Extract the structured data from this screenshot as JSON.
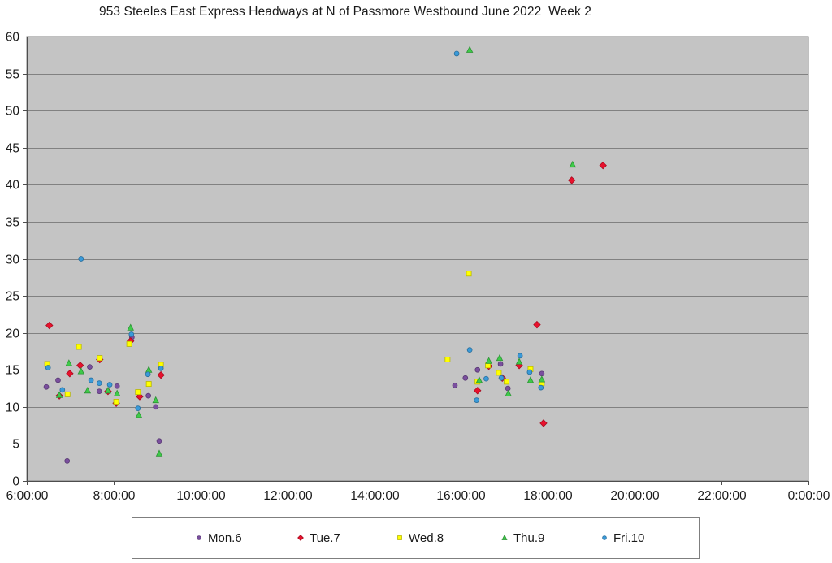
{
  "chart_data": {
    "type": "scatter",
    "title": "953 Steeles East Express Headways at N of Passmore Westbound June 2022  Week 2",
    "xlabel": "",
    "ylabel": "",
    "xlim": [
      6,
      24
    ],
    "ylim": [
      0,
      60
    ],
    "y_tick_step": 5,
    "x_tick_labels": [
      "6:00:00",
      "8:00:00",
      "10:00:00",
      "12:00:00",
      "14:00:00",
      "16:00:00",
      "18:00:00",
      "20:00:00",
      "22:00:00",
      "0:00:00"
    ],
    "y_tick_labels": [
      "0",
      "5",
      "10",
      "15",
      "20",
      "25",
      "30",
      "35",
      "40",
      "45",
      "50",
      "55",
      "60"
    ],
    "grid": "horizontal",
    "legend_position": "bottom",
    "plot_bg_color": "#c4c4c4",
    "grid_color": "#818181",
    "axis_color": "#4d4d4d",
    "label_color": "#1a1a1a",
    "x_unit": "time of day (hours)",
    "y_unit": "headway (minutes)",
    "series": [
      {
        "name": "Mon.6",
        "marker": "circle",
        "color": "#7a4f9e",
        "points": [
          [
            6.45,
            12.7
          ],
          [
            6.72,
            13.6
          ],
          [
            6.93,
            2.7
          ],
          [
            7.45,
            15.4
          ],
          [
            7.67,
            12.1
          ],
          [
            8.08,
            12.8
          ],
          [
            8.42,
            19.4
          ],
          [
            8.8,
            11.5
          ],
          [
            8.97,
            10.0
          ],
          [
            9.05,
            5.4
          ],
          [
            15.86,
            12.9
          ],
          [
            16.1,
            13.9
          ],
          [
            16.38,
            15.0
          ],
          [
            16.91,
            15.8
          ],
          [
            17.08,
            12.5
          ],
          [
            17.86,
            14.5
          ]
        ]
      },
      {
        "name": "Tue.7",
        "marker": "diamond",
        "color": "#e8112d",
        "points": [
          [
            6.52,
            21.0
          ],
          [
            6.75,
            11.5
          ],
          [
            6.99,
            14.5
          ],
          [
            7.23,
            15.6
          ],
          [
            7.68,
            16.4
          ],
          [
            7.87,
            12.1
          ],
          [
            8.06,
            10.5
          ],
          [
            8.39,
            18.9
          ],
          [
            8.6,
            11.4
          ],
          [
            9.09,
            14.3
          ],
          [
            16.38,
            12.2
          ],
          [
            16.64,
            15.5
          ],
          [
            16.95,
            13.9
          ],
          [
            17.34,
            15.6
          ],
          [
            17.75,
            21.1
          ],
          [
            17.9,
            7.8
          ],
          [
            18.55,
            40.6
          ],
          [
            19.27,
            42.6
          ]
        ]
      },
      {
        "name": "Wed.8",
        "marker": "square",
        "color": "#ffff00",
        "points": [
          [
            6.47,
            15.8
          ],
          [
            6.94,
            11.7
          ],
          [
            7.2,
            18.1
          ],
          [
            7.68,
            16.6
          ],
          [
            8.06,
            10.7
          ],
          [
            8.36,
            18.5
          ],
          [
            8.56,
            12.0
          ],
          [
            8.81,
            13.1
          ],
          [
            9.09,
            15.7
          ],
          [
            15.69,
            16.4
          ],
          [
            16.18,
            28.0
          ],
          [
            16.38,
            13.4
          ],
          [
            16.62,
            15.6
          ],
          [
            16.87,
            14.6
          ],
          [
            17.05,
            13.4
          ],
          [
            17.6,
            15.1
          ],
          [
            17.86,
            13.2
          ]
        ]
      },
      {
        "name": "Thu.9",
        "marker": "triangle",
        "color": "#3ecb49",
        "points": [
          [
            6.75,
            11.6
          ],
          [
            6.97,
            15.9
          ],
          [
            7.25,
            14.8
          ],
          [
            7.4,
            12.2
          ],
          [
            7.87,
            12.2
          ],
          [
            8.08,
            11.8
          ],
          [
            8.39,
            20.7
          ],
          [
            8.58,
            8.9
          ],
          [
            8.81,
            15.0
          ],
          [
            8.97,
            10.9
          ],
          [
            9.05,
            3.7
          ],
          [
            16.2,
            58.2
          ],
          [
            16.42,
            13.6
          ],
          [
            16.64,
            16.2
          ],
          [
            16.89,
            16.6
          ],
          [
            17.09,
            11.8
          ],
          [
            17.34,
            16.1
          ],
          [
            17.6,
            13.6
          ],
          [
            17.86,
            13.7
          ],
          [
            18.57,
            42.7
          ]
        ]
      },
      {
        "name": "Fri.10",
        "marker": "circle",
        "color": "#3a9ad9",
        "points": [
          [
            6.49,
            15.3
          ],
          [
            6.82,
            12.3
          ],
          [
            7.25,
            30.0
          ],
          [
            7.48,
            13.6
          ],
          [
            7.67,
            13.2
          ],
          [
            7.91,
            13.0
          ],
          [
            8.41,
            19.8
          ],
          [
            8.56,
            9.8
          ],
          [
            8.79,
            14.4
          ],
          [
            9.09,
            15.2
          ],
          [
            15.9,
            57.7
          ],
          [
            16.2,
            17.7
          ],
          [
            16.36,
            10.9
          ],
          [
            16.58,
            13.8
          ],
          [
            16.93,
            13.9
          ],
          [
            17.36,
            16.9
          ],
          [
            17.58,
            14.7
          ],
          [
            17.84,
            12.6
          ]
        ]
      }
    ]
  }
}
